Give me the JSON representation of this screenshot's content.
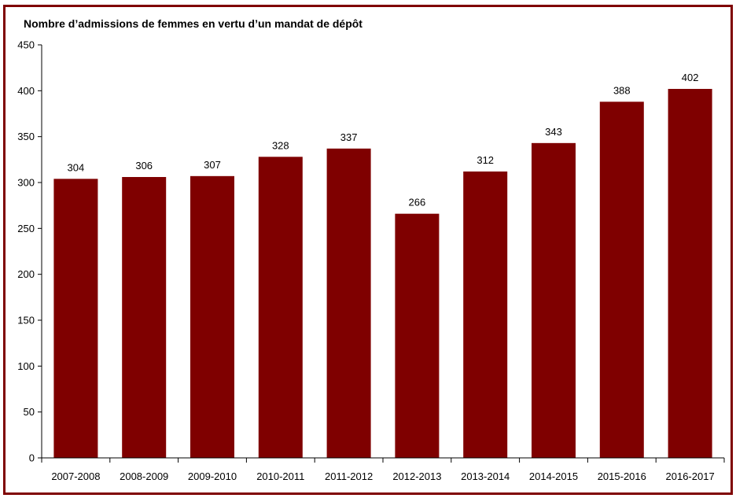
{
  "colors": {
    "bar": "#7f0000",
    "frame": "#7f0000",
    "axis": "#000000"
  },
  "chart_data": {
    "type": "bar",
    "title": "Nombre d’admissions de femmes en vertu d’un mandat de dépôt",
    "xlabel": "",
    "ylabel": "",
    "categories": [
      "2007-2008",
      "2008-2009",
      "2009-2010",
      "2010-2011",
      "2011-2012",
      "2012-2013",
      "2013-2014",
      "2014-2015",
      "2015-2016",
      "2016-2017"
    ],
    "values": [
      304,
      306,
      307,
      328,
      337,
      266,
      312,
      343,
      388,
      402
    ],
    "value_labels": [
      "304",
      "306",
      "307",
      "328",
      "337",
      "266",
      "312",
      "343",
      "388",
      "402"
    ],
    "ylim": [
      0,
      450
    ],
    "yticks": [
      0,
      50,
      100,
      150,
      200,
      250,
      300,
      350,
      400,
      450
    ],
    "ytick_labels": [
      "0",
      "50",
      "100",
      "150",
      "200",
      "250",
      "300",
      "350",
      "400",
      "450"
    ],
    "grid": false,
    "legend": "none"
  }
}
